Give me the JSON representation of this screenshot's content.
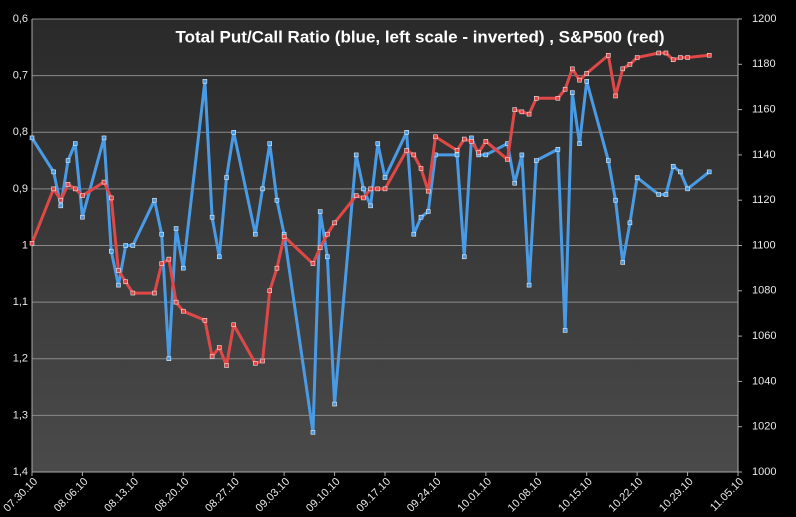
{
  "chart_data": {
    "type": "line",
    "title": "Total Put/Call Ratio (blue, left scale - inverted) , S&P500 (red)",
    "x": [
      "07.30.10",
      "08.02.10",
      "08.03.10",
      "08.04.10",
      "08.05.10",
      "08.06.10",
      "08.09.10",
      "08.10.10",
      "08.11.10",
      "08.12.10",
      "08.13.10",
      "08.16.10",
      "08.17.10",
      "08.18.10",
      "08.19.10",
      "08.20.10",
      "08.23.10",
      "08.24.10",
      "08.25.10",
      "08.26.10",
      "08.27.10",
      "08.30.10",
      "08.31.10",
      "09.01.10",
      "09.02.10",
      "09.03.10",
      "09.07.10",
      "09.08.10",
      "09.09.10",
      "09.10.10",
      "09.13.10",
      "09.14.10",
      "09.15.10",
      "09.16.10",
      "09.17.10",
      "09.20.10",
      "09.21.10",
      "09.22.10",
      "09.23.10",
      "09.24.10",
      "09.27.10",
      "09.28.10",
      "09.29.10",
      "09.30.10",
      "10.01.10",
      "10.04.10",
      "10.05.10",
      "10.06.10",
      "10.07.10",
      "10.08.10",
      "10.11.10",
      "10.12.10",
      "10.13.10",
      "10.14.10",
      "10.15.10",
      "10.18.10",
      "10.19.10",
      "10.20.10",
      "10.21.10",
      "10.22.10",
      "10.25.10",
      "10.26.10",
      "10.27.10",
      "10.28.10",
      "10.29.10",
      "11.01.10"
    ],
    "xlim": [
      "07.30.10",
      "11.05.10"
    ],
    "xticks": [
      "07.30.10",
      "08.06.10",
      "08.13.10",
      "08.20.10",
      "08.27.10",
      "09.03.10",
      "09.10.10",
      "09.17.10",
      "09.24.10",
      "10.01.10",
      "10.08.10",
      "10.15.10",
      "10.22.10",
      "10.29.10",
      "11.05.10"
    ],
    "ylim": [
      0.6,
      1.4
    ],
    "y_inverted": true,
    "yticks": [
      {
        "value": 0.6,
        "label": "0,6"
      },
      {
        "value": 0.7,
        "label": "0,7"
      },
      {
        "value": 0.8,
        "label": "0,8"
      },
      {
        "value": 0.9,
        "label": "0,9"
      },
      1,
      {
        "value": 1.1,
        "label": "1,1"
      },
      {
        "value": 1.2,
        "label": "1,2"
      },
      {
        "value": 1.3,
        "label": "1,3"
      },
      {
        "value": 1.4,
        "label": "1,4"
      }
    ],
    "y2lim": [
      1000,
      1200
    ],
    "y2ticks": [
      1000,
      1020,
      1040,
      1060,
      1080,
      1100,
      1120,
      1140,
      1160,
      1180,
      1200
    ],
    "grid": true,
    "series": [
      {
        "name": "Total Put/Call Ratio",
        "color": "#4a9be6",
        "axis": "y",
        "values": [
          0.81,
          0.87,
          0.93,
          0.85,
          0.82,
          0.95,
          0.81,
          1.01,
          1.07,
          1.0,
          1.0,
          0.92,
          0.98,
          1.2,
          0.97,
          1.04,
          0.71,
          0.95,
          1.02,
          0.88,
          0.8,
          0.98,
          0.9,
          0.82,
          0.92,
          0.98,
          1.33,
          0.94,
          1.02,
          1.28,
          0.84,
          0.9,
          0.93,
          0.82,
          0.88,
          0.8,
          0.98,
          0.95,
          0.94,
          0.84,
          0.84,
          1.02,
          0.81,
          0.84,
          0.84,
          0.82,
          0.89,
          0.84,
          1.07,
          0.85,
          0.83,
          1.15,
          0.73,
          0.82,
          0.71,
          0.85,
          0.92,
          1.03,
          0.96,
          0.88,
          0.91,
          0.91,
          0.86,
          0.87,
          0.9,
          0.87
        ]
      },
      {
        "name": "S&P500",
        "color": "#e04848",
        "axis": "y2",
        "values": [
          1101,
          1125,
          1120,
          1127,
          1125,
          1122,
          1128,
          1121,
          1089,
          1084,
          1079,
          1079,
          1092,
          1094,
          1075,
          1071,
          1067,
          1051,
          1055,
          1047,
          1065,
          1048,
          1049,
          1080,
          1090,
          1104,
          1092,
          1099,
          1105,
          1110,
          1122,
          1121,
          1125,
          1125,
          1125,
          1142,
          1140,
          1134,
          1124,
          1148,
          1142,
          1147,
          1146,
          1141,
          1146,
          1138,
          1160,
          1159,
          1158,
          1165,
          1165,
          1169,
          1178,
          1173,
          1176,
          1184,
          1166,
          1178,
          1180,
          1183,
          1185,
          1185,
          1182,
          1183,
          1183,
          1184
        ]
      }
    ]
  }
}
